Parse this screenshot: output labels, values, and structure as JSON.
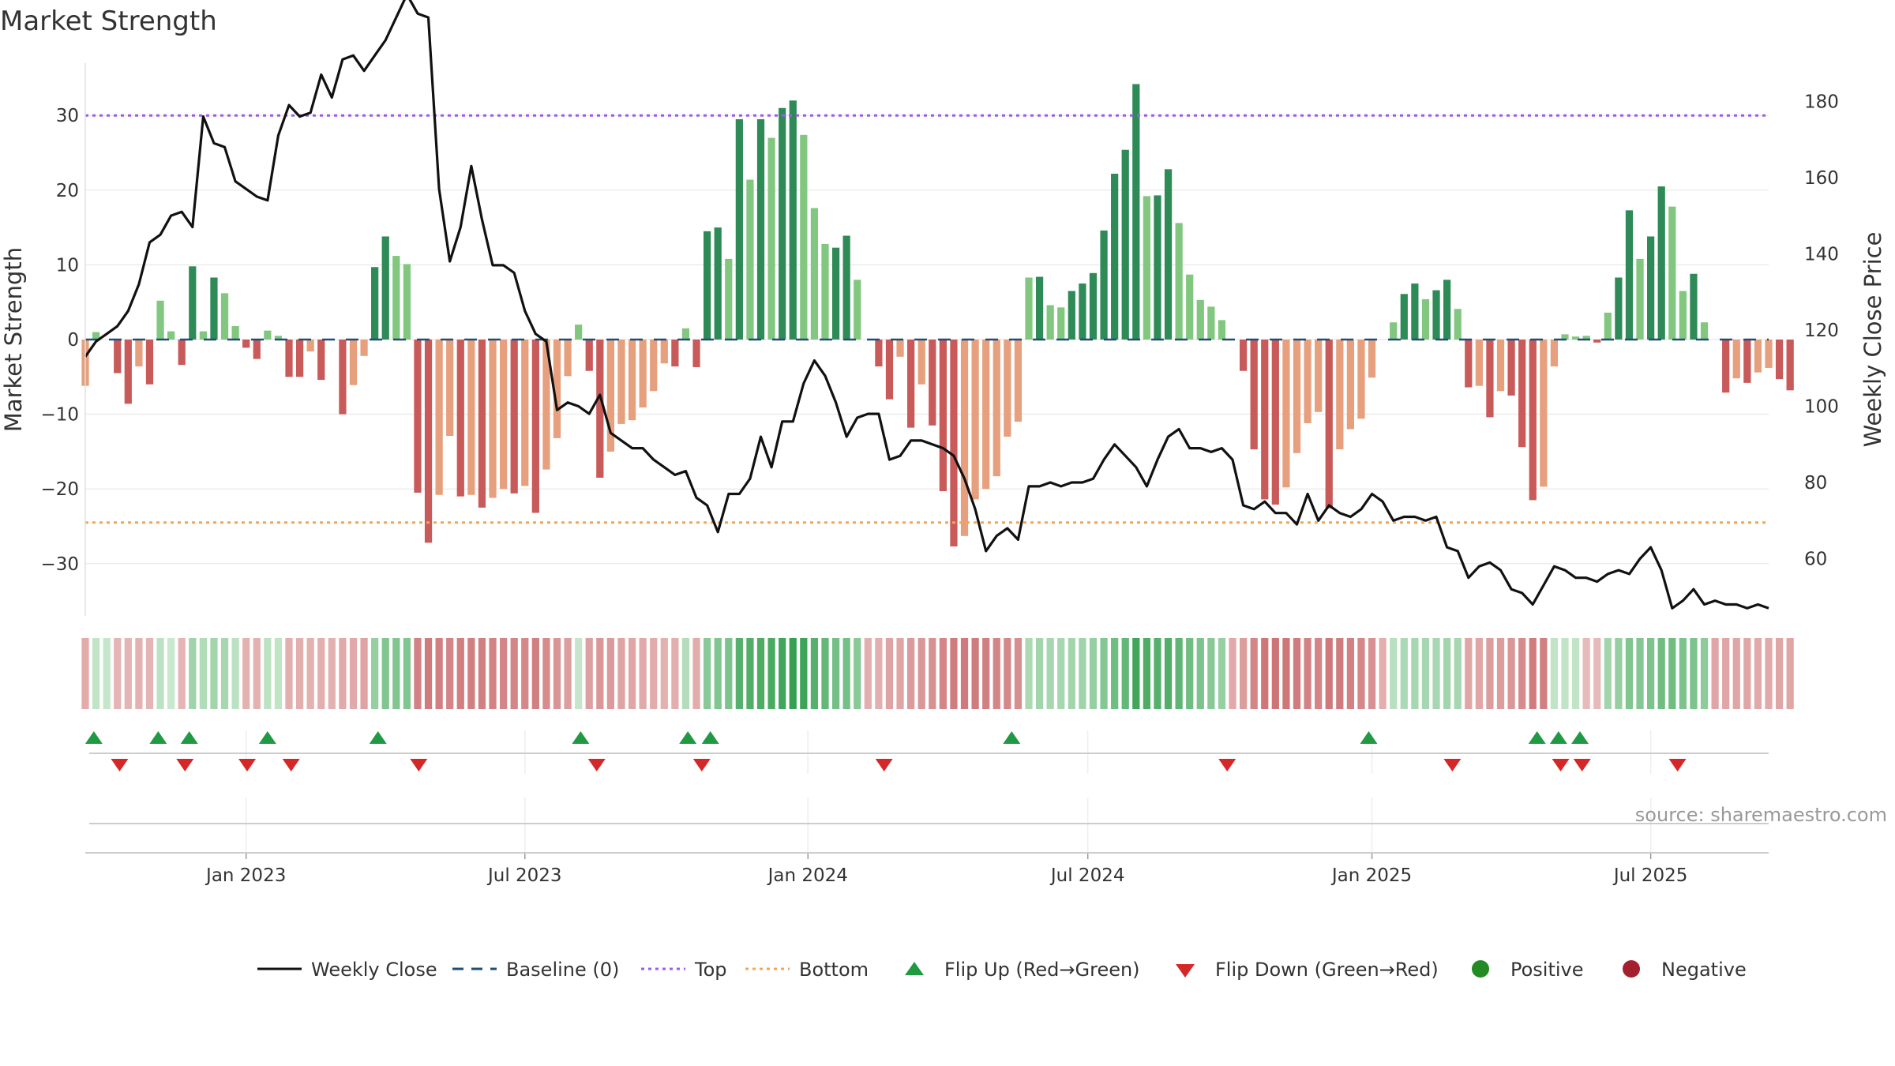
{
  "chart_data": {
    "type": "bar",
    "title": "Market Strength",
    "ylabel_left": "Market Strength",
    "ylabel_right": "Weekly Close Price",
    "ylim_left": [
      -37,
      37
    ],
    "ylim_right": [
      45,
      190
    ],
    "yticks_left": [
      30,
      20,
      10,
      0,
      -10,
      -20,
      -30
    ],
    "ytick_labels_left": [
      "30",
      "20",
      "10",
      "0",
      "−10",
      "−20",
      "−30"
    ],
    "yticks_right": [
      180,
      160,
      140,
      120,
      100,
      80,
      60
    ],
    "ytick_labels_right": [
      "180",
      "160",
      "140",
      "120",
      "100",
      "80",
      "60"
    ],
    "x_range": [
      0,
      157
    ],
    "xticks": [
      {
        "x": 15,
        "label": "Jan 2023"
      },
      {
        "x": 41,
        "label": "Jul 2023"
      },
      {
        "x": 67.4,
        "label": "Jan 2024"
      },
      {
        "x": 93.5,
        "label": "Jul 2024"
      },
      {
        "x": 120,
        "label": "Jan 2025"
      },
      {
        "x": 146,
        "label": "Jul 2025"
      }
    ],
    "top_level": 30,
    "bottom_level": -24.5,
    "strength": [
      -6.2,
      1,
      0,
      -4.5,
      -8.6,
      -3.6,
      -6,
      5.2,
      1.1,
      -3.4,
      9.8,
      1.1,
      8.3,
      6.2,
      1.8,
      -1.1,
      -2.6,
      1.2,
      0.5,
      -5,
      -5,
      -1.6,
      -5.4,
      0,
      -10,
      -6.1,
      -2.2,
      9.7,
      13.8,
      11.2,
      10.1,
      -20.5,
      -27.2,
      -20.8,
      -12.9,
      -21,
      -20.8,
      -22.5,
      -21.2,
      -20,
      -20.6,
      -19.6,
      -23.2,
      -17.4,
      -13.2,
      -4.9,
      2,
      -4.2,
      -18.5,
      -15,
      -11.3,
      -10.8,
      -9.1,
      -6.9,
      -3.2,
      -3.6,
      1.5,
      -3.7,
      14.5,
      15,
      10.8,
      29.5,
      21.4,
      29.5,
      27,
      31,
      32,
      27.4,
      17.6,
      12.8,
      12.3,
      13.9,
      8,
      0,
      -3.6,
      -8,
      -2.3,
      -11.8,
      -6,
      -11.5,
      -20.3,
      -27.7,
      -26.3,
      -21.4,
      -20,
      -18.3,
      -13,
      -11,
      8.3,
      8.4,
      4.6,
      4.3,
      6.5,
      7.5,
      8.9,
      14.6,
      22.2,
      25.4,
      34.2,
      19.2,
      19.3,
      22.8,
      15.6,
      8.7,
      5.3,
      4.4,
      2.6,
      0,
      -4.2,
      -14.7,
      -21.4,
      -22.1,
      -19.8,
      -15.2,
      -11.2,
      -9.7,
      -22.6,
      -14.7,
      -12,
      -10.6,
      -5.1,
      0,
      2.3,
      6.1,
      7.5,
      5.4,
      6.6,
      8,
      4.1,
      -6.4,
      -6.2,
      -10.4,
      -6.9,
      -7.5,
      -14.4,
      -21.5,
      -19.7,
      -3.6,
      0.7,
      0.4,
      0.5,
      -0.4,
      3.6,
      8.3,
      17.3,
      10.8,
      13.8,
      20.5,
      17.8,
      6.5,
      8.8,
      2.3,
      0,
      -7.1,
      -5.2,
      -5.8,
      -4.4,
      -3.8,
      -5.3,
      -6.8
    ],
    "weekly_close": [
      113,
      117,
      119,
      121,
      125,
      132,
      143,
      145,
      150,
      151,
      147,
      176,
      169,
      168,
      159,
      157,
      155,
      154,
      171,
      179,
      176,
      177,
      187,
      181,
      191,
      192,
      188,
      192,
      196,
      202,
      208,
      203,
      202,
      157,
      138,
      147,
      163,
      149,
      137,
      137,
      135,
      125,
      119,
      117,
      99,
      101,
      100,
      98,
      103,
      93,
      91,
      89,
      89,
      86,
      84,
      82,
      83,
      76,
      74,
      67,
      77,
      77,
      81,
      92,
      84,
      96,
      96,
      106,
      112,
      108,
      101,
      92,
      97,
      98,
      98,
      86,
      87,
      91,
      91,
      90,
      89,
      87,
      81,
      73,
      62,
      66,
      68,
      65,
      79,
      79,
      80,
      79,
      80,
      80,
      81,
      86,
      90,
      87,
      84,
      79,
      86,
      92,
      94,
      89,
      89,
      88,
      89,
      86,
      74,
      73,
      75,
      72,
      72,
      69,
      77,
      70,
      74,
      72,
      71,
      73,
      77,
      75,
      70,
      71,
      71,
      70,
      71,
      63,
      62,
      55,
      58,
      59,
      57,
      52,
      51,
      48,
      53,
      58,
      57,
      55,
      55,
      54,
      56,
      57,
      56,
      60,
      63,
      57,
      47,
      49,
      52,
      48,
      49,
      48,
      48,
      47,
      48,
      47
    ],
    "heat_values": [
      -1.1,
      0.5,
      0.4,
      -0.8,
      -0.8,
      -0.9,
      -0.8,
      0.6,
      0.3,
      -0.8,
      1.3,
      0.9,
      1.2,
      1.1,
      0.6,
      -0.9,
      -0.9,
      0.6,
      0.5,
      -1,
      -1,
      -0.9,
      -1,
      -0.9,
      -1.2,
      -1.2,
      -1.4,
      1.5,
      2,
      2,
      2,
      -2.5,
      -2.7,
      -2.6,
      -2.4,
      -2.6,
      -2.6,
      -2.6,
      -2.5,
      -2.4,
      -2.4,
      -2.3,
      -2.6,
      -2.2,
      -1.9,
      -1.6,
      0.4,
      -1.5,
      -1.8,
      -1.7,
      -1.4,
      -1.3,
      -1.2,
      -1.1,
      -0.9,
      -1,
      0.8,
      -1.1,
      1.8,
      2,
      2.1,
      3,
      3.1,
      3.2,
      3.3,
      3.5,
      3.8,
      3.6,
      3,
      2.7,
      2.3,
      2.3,
      1.8,
      -1,
      -1,
      -1.4,
      -1.3,
      -1.7,
      -1.8,
      -2,
      -2.4,
      -2.7,
      -2.8,
      -2.7,
      -2.6,
      -2.4,
      -2.3,
      -2.1,
      1,
      1.2,
      1.1,
      1.1,
      1.2,
      1.3,
      1.5,
      1.9,
      2.4,
      2.7,
      3.5,
      3.2,
      3,
      3.1,
      2.8,
      2.4,
      2.1,
      1.8,
      1.5,
      -1.2,
      -1.6,
      -2.4,
      -2.9,
      -3,
      -2.9,
      -2.7,
      -2.5,
      -2.4,
      -2.8,
      -2.7,
      -2.5,
      -2.3,
      -2,
      -1,
      0.7,
      1,
      1.1,
      1.1,
      1.1,
      1.2,
      1.1,
      -1.3,
      -1.3,
      -1.6,
      -1.6,
      -1.8,
      -2.2,
      -2.7,
      -2.6,
      0.5,
      0.5,
      0.5,
      -0.6,
      -0.6,
      1.2,
      1.5,
      2,
      1.9,
      2.1,
      2.4,
      2.4,
      2.1,
      2.1,
      1.7,
      -1.3,
      -1.3,
      -1.3,
      -1.3,
      -1.2,
      -1.2,
      -1.3,
      -1.3
    ],
    "flip_up": [
      0.8,
      6.8,
      9.7,
      17,
      27.3,
      46.2,
      56.2,
      58.3,
      86.4,
      119.7,
      135.4,
      137.4,
      139.4
    ],
    "flip_down": [
      3.2,
      9.3,
      15.1,
      19.2,
      31.1,
      47.7,
      57.5,
      74.5,
      106.5,
      127.5,
      137.6,
      139.6,
      148.5
    ],
    "colors": {
      "strong_pos": "#2e8b57",
      "weak_pos": "#82c77f",
      "strong_neg": "#c85a5a",
      "weak_neg": "#e6a07e",
      "baseline": "#1f4e79",
      "top_line": "#9b5de5",
      "bottom_line": "#f2a65a",
      "close_line": "#111111",
      "flip_up": "#1f9a43",
      "flip_down": "#d62728",
      "positive_dot": "#228b22",
      "negative_dot": "#a3202c"
    },
    "legend": [
      {
        "label": "Weekly Close",
        "kind": "line"
      },
      {
        "label": "Baseline (0)",
        "kind": "dash"
      },
      {
        "label": "Top",
        "kind": "dot_top"
      },
      {
        "label": "Bottom",
        "kind": "dot_bottom"
      },
      {
        "label": "Flip Up (Red→Green)",
        "kind": "tri_up"
      },
      {
        "label": "Flip Down (Green→Red)",
        "kind": "tri_down"
      },
      {
        "label": "Positive",
        "kind": "dot_pos"
      },
      {
        "label": "Negative",
        "kind": "dot_neg"
      }
    ]
  },
  "source_text": "source: sharemaestro.com"
}
